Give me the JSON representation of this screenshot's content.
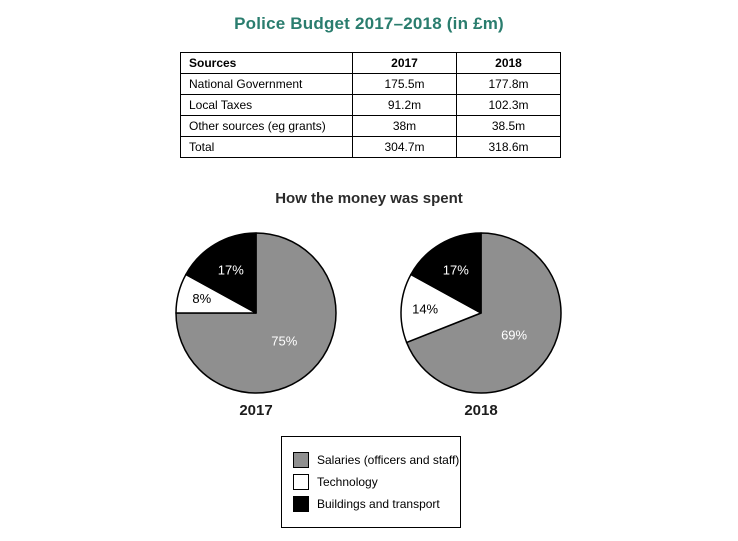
{
  "page": {
    "title": "Police Budget 2017–2018 (in £m)",
    "subtitle": "How the money was spent"
  },
  "style": {
    "title_color": "#2a7d6e",
    "salaries_gray": "#8f8f8f",
    "technology_white": "#ffffff",
    "buildings_black": "#000000"
  },
  "table": {
    "headers": [
      "Sources",
      "2017",
      "2018"
    ],
    "rows": [
      [
        "National Government",
        "175.5m",
        "177.8m"
      ],
      [
        "Local Taxes",
        "91.2m",
        "102.3m"
      ],
      [
        "Other sources (eg grants)",
        "38m",
        "38.5m"
      ],
      [
        "Total",
        "304.7m",
        "318.6m"
      ]
    ]
  },
  "pies": {
    "year_labels": [
      "2017",
      "2018"
    ]
  },
  "legend": {
    "items": [
      {
        "label": "Salaries (officers and staff)",
        "color": "#8f8f8f"
      },
      {
        "label": "Technology",
        "color": "#ffffff"
      },
      {
        "label": "Buildings and transport",
        "color": "#000000"
      }
    ]
  },
  "chart_data": [
    {
      "type": "table",
      "title": "Police Budget 2017–2018 (in £m)",
      "columns": [
        "Sources",
        "2017",
        "2018"
      ],
      "rows": [
        [
          "National Government",
          "175.5m",
          "177.8m"
        ],
        [
          "Local Taxes",
          "91.2m",
          "102.3m"
        ],
        [
          "Other sources (eg grants)",
          "38m",
          "38.5m"
        ],
        [
          "Total",
          "304.7m",
          "318.6m"
        ]
      ]
    },
    {
      "type": "pie",
      "title": "2017",
      "context": "How the money was spent",
      "categories": [
        "Salaries (officers and staff)",
        "Technology",
        "Buildings and transport"
      ],
      "values": [
        75,
        8,
        17
      ],
      "unit": "%",
      "colors": [
        "#8f8f8f",
        "#ffffff",
        "#000000"
      ],
      "start_angle": "top",
      "direction": "clockwise"
    },
    {
      "type": "pie",
      "title": "2018",
      "context": "How the money was spent",
      "categories": [
        "Salaries (officers and staff)",
        "Technology",
        "Buildings and transport"
      ],
      "values": [
        69,
        14,
        17
      ],
      "unit": "%",
      "colors": [
        "#8f8f8f",
        "#ffffff",
        "#000000"
      ],
      "start_angle": "top",
      "direction": "clockwise"
    }
  ]
}
